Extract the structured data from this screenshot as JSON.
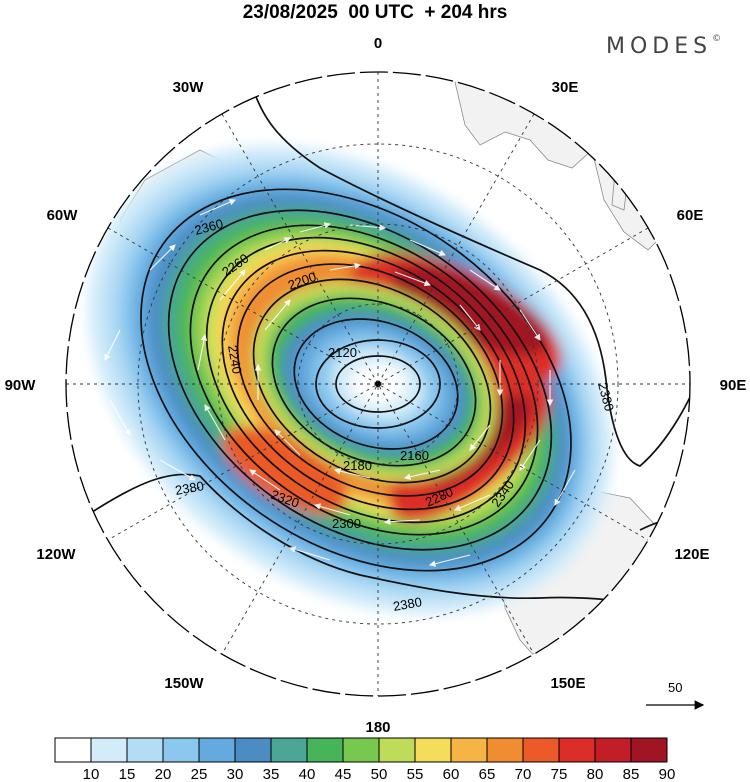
{
  "title": "23/08/2025  00 UTC  + 204 hrs",
  "brand": "MODES",
  "brand_mark": "©",
  "longitude_labels": [
    "0",
    "30E",
    "60E",
    "90E",
    "120E",
    "150E",
    "180",
    "150W",
    "120W",
    "90W",
    "60W",
    "30W"
  ],
  "contour_labels": [
    "2120",
    "2160",
    "2180",
    "2200",
    "2240",
    "2260",
    "2280",
    "2300",
    "2320",
    "2340",
    "2360",
    "2380"
  ],
  "vector_reference": {
    "label": "50"
  },
  "colorbar": {
    "labels": [
      "10",
      "15",
      "20",
      "25",
      "30",
      "35",
      "40",
      "45",
      "50",
      "55",
      "60",
      "65",
      "70",
      "75",
      "80",
      "85",
      "90"
    ],
    "colors": [
      "#ffffff",
      "#d2ecfa",
      "#b4dcf5",
      "#8cc8ee",
      "#64aadf",
      "#4b8cc3",
      "#4ba696",
      "#46b45a",
      "#78c850",
      "#bedc5a",
      "#f5dc5a",
      "#f5b446",
      "#f08c32",
      "#eb5a28",
      "#dc2d28",
      "#c31e28",
      "#a01423"
    ]
  }
}
